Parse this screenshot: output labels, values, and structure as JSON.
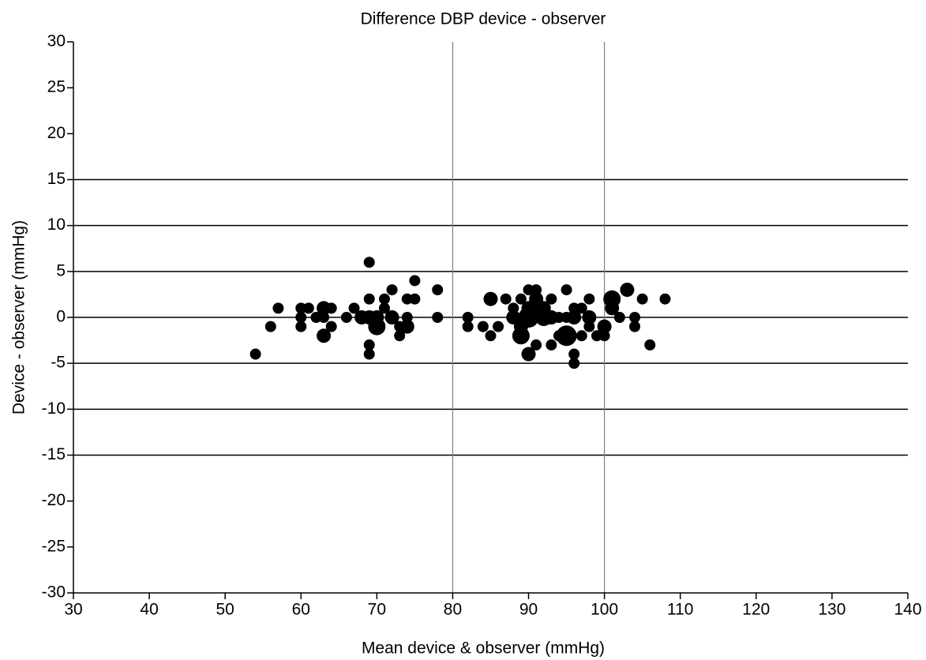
{
  "chart_data": {
    "type": "scatter",
    "title": "Difference DBP device - observer",
    "xlabel": "Mean device & observer (mmHg)",
    "ylabel": "Device - observer (mmHg)",
    "color": "#000000",
    "x": [
      54,
      56,
      57,
      60,
      60,
      60,
      61,
      62,
      63,
      63,
      63,
      64,
      64,
      66,
      67,
      68,
      69,
      69,
      69,
      69,
      69,
      70,
      70,
      71,
      71,
      72,
      72,
      73,
      73,
      74,
      74,
      74,
      75,
      75,
      78,
      78,
      82,
      82,
      84,
      85,
      85,
      86,
      87,
      88,
      88,
      89,
      89,
      89,
      90,
      90,
      90,
      90,
      91,
      91,
      91,
      91,
      92,
      92,
      93,
      93,
      93,
      94,
      94,
      95,
      95,
      95,
      96,
      96,
      96,
      96,
      97,
      97,
      98,
      98,
      98,
      99,
      100,
      100,
      101,
      101,
      102,
      103,
      104,
      104,
      105,
      106,
      108
    ],
    "values": [
      -4,
      -1,
      1,
      1,
      0,
      -1,
      1,
      0,
      1,
      0,
      -2,
      1,
      -1,
      0,
      1,
      0,
      6,
      2,
      0,
      -3,
      -4,
      -1,
      0,
      1,
      2,
      3,
      0,
      -1,
      -2,
      2,
      0,
      -1,
      4,
      2,
      3,
      0,
      0,
      -1,
      -1,
      2,
      -2,
      -1,
      2,
      0,
      1,
      2,
      -1,
      -2,
      3,
      1,
      0,
      -4,
      3,
      2,
      1,
      -3,
      0,
      1,
      2,
      -3,
      0,
      0,
      -2,
      3,
      -2,
      0,
      1,
      -4,
      -5,
      0,
      1,
      -2,
      2,
      0,
      -1,
      -2,
      -1,
      -2,
      2,
      1,
      0,
      3,
      0,
      -1,
      2,
      -3,
      2
    ],
    "sizes": [
      1,
      1,
      1,
      1,
      1,
      1,
      1,
      1,
      2,
      1,
      2,
      1,
      1,
      1,
      1,
      2,
      1,
      1,
      2,
      1,
      1,
      3,
      2,
      1,
      1,
      1,
      2,
      1,
      1,
      1,
      1,
      2,
      1,
      1,
      1,
      1,
      1,
      1,
      1,
      2,
      1,
      1,
      1,
      2,
      1,
      1,
      2,
      3,
      1,
      2,
      4,
      2,
      1,
      2,
      2,
      1,
      3,
      2,
      1,
      1,
      2,
      1,
      1,
      1,
      4,
      1,
      1,
      1,
      1,
      2,
      1,
      1,
      1,
      2,
      1,
      1,
      2,
      1,
      3,
      2,
      1,
      2,
      1,
      1,
      1,
      1,
      1
    ],
    "xlim": [
      30,
      140
    ],
    "xticks": [
      30,
      40,
      50,
      60,
      70,
      80,
      90,
      100,
      110,
      120,
      130,
      140
    ],
    "ylim": [
      -30,
      30
    ],
    "yticks": [
      30,
      25,
      20,
      15,
      10,
      5,
      0,
      -5,
      -10,
      -15,
      -20,
      -25,
      -30
    ],
    "hlines": [
      15,
      10,
      5,
      0,
      -5,
      -10,
      -15
    ],
    "hline_color": "#000000",
    "vlines": [
      80,
      100
    ],
    "vline_color": "#808080"
  }
}
